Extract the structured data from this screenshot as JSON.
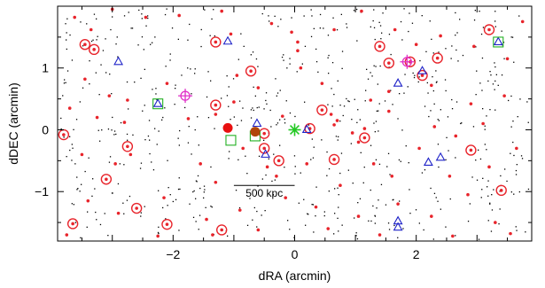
{
  "chart_data": {
    "type": "scatter",
    "title": "",
    "xlabel": "dRA (arcmin)",
    "ylabel": "dDEC (arcmin)",
    "xlim": [
      -3.9,
      3.9
    ],
    "ylim": [
      -1.8,
      2.0
    ],
    "x_ticks": [
      -2,
      0,
      2
    ],
    "x_tick_labels": [
      "−2",
      "0",
      "2"
    ],
    "y_ticks": [
      -1,
      0,
      1
    ],
    "y_tick_labels": [
      "−1",
      "0",
      "1"
    ],
    "grid": false,
    "scale_bar": {
      "label": "500 kpc",
      "x_start": -1.0,
      "x_end": 0.0,
      "y": -0.9
    },
    "background_galaxies": {
      "count": 650,
      "color": "#000000",
      "marker": "dot"
    },
    "series": [
      {
        "marker": "red-dot",
        "color": "#e8242b",
        "points": [
          [
            -3.62,
            1.82
          ],
          [
            -3.35,
            1.62
          ],
          [
            -3.0,
            1.95
          ],
          [
            -2.45,
            1.82
          ],
          [
            -1.9,
            1.85
          ],
          [
            -1.2,
            1.92
          ],
          [
            -1.05,
            1.55
          ],
          [
            -0.38,
            1.72
          ],
          [
            -0.05,
            1.58
          ],
          [
            0.05,
            1.28
          ],
          [
            0.05,
            1.42
          ],
          [
            0.65,
            1.62
          ],
          [
            1.1,
            1.92
          ],
          [
            1.65,
            1.62
          ],
          [
            2.0,
            1.38
          ],
          [
            2.4,
            1.52
          ],
          [
            2.95,
            1.35
          ],
          [
            3.5,
            1.15
          ],
          [
            3.75,
            1.75
          ],
          [
            -3.45,
            0.82
          ],
          [
            -3.05,
            0.55
          ],
          [
            -2.75,
            0.48
          ],
          [
            -2.1,
            0.75
          ],
          [
            -0.95,
            0.88
          ],
          [
            -0.6,
            0.68
          ],
          [
            0.1,
            1.0
          ],
          [
            0.45,
            0.75
          ],
          [
            1.25,
            0.48
          ],
          [
            1.55,
            0.62
          ],
          [
            2.25,
            0.72
          ],
          [
            2.9,
            0.42
          ],
          [
            3.45,
            0.55
          ],
          [
            -3.7,
            0.35
          ],
          [
            -3.25,
            0.2
          ],
          [
            -2.8,
            0.12
          ],
          [
            -1.75,
            0.18
          ],
          [
            -1.3,
            0.25
          ],
          [
            -0.2,
            0.22
          ],
          [
            0.6,
            0.25
          ],
          [
            0.7,
            0.15
          ],
          [
            0.65,
            0.08
          ],
          [
            0.95,
            -0.05
          ],
          [
            1.15,
            0.02
          ],
          [
            1.55,
            0.3
          ],
          [
            2.3,
            0.05
          ],
          [
            2.65,
            -0.1
          ],
          [
            3.1,
            0.1
          ],
          [
            -3.5,
            -0.4
          ],
          [
            -2.95,
            -0.55
          ],
          [
            -2.7,
            -0.4
          ],
          [
            -1.55,
            -0.55
          ],
          [
            -1.3,
            -0.85
          ],
          [
            -0.85,
            -0.3
          ],
          [
            -0.45,
            -0.6
          ],
          [
            -0.3,
            -0.75
          ],
          [
            0.2,
            -0.55
          ],
          [
            0.75,
            -0.9
          ],
          [
            1.3,
            -0.55
          ],
          [
            1.6,
            -0.75
          ],
          [
            2.05,
            -0.3
          ],
          [
            2.55,
            -0.75
          ],
          [
            3.2,
            -0.6
          ],
          [
            3.65,
            -0.3
          ],
          [
            -3.4,
            -1.15
          ],
          [
            -2.9,
            -1.35
          ],
          [
            -2.15,
            -1.1
          ],
          [
            -1.45,
            -1.45
          ],
          [
            -0.9,
            -1.3
          ],
          [
            -0.15,
            -1.1
          ],
          [
            0.35,
            -1.25
          ],
          [
            1.05,
            -1.4
          ],
          [
            1.7,
            -1.2
          ],
          [
            2.25,
            -1.4
          ],
          [
            2.85,
            -1.05
          ],
          [
            3.3,
            -1.5
          ],
          [
            -3.75,
            -1.7
          ],
          [
            -2.25,
            -1.72
          ],
          [
            -1.35,
            -1.7
          ],
          [
            -0.6,
            -1.62
          ],
          [
            0.55,
            -1.6
          ],
          [
            1.4,
            -1.7
          ],
          [
            2.6,
            -1.72
          ],
          [
            3.55,
            -1.68
          ],
          [
            -1.0,
            0.45
          ],
          [
            1.05,
            -0.2
          ]
        ]
      },
      {
        "marker": "circled-dot",
        "color": "#e8242b",
        "points": [
          [
            -3.45,
            1.38
          ],
          [
            -3.3,
            1.3
          ],
          [
            -2.75,
            -0.27
          ],
          [
            -3.8,
            -0.08
          ],
          [
            -3.1,
            -0.8
          ],
          [
            -2.6,
            -1.27
          ],
          [
            -3.65,
            -1.52
          ],
          [
            -2.1,
            -1.53
          ],
          [
            -1.3,
            1.42
          ],
          [
            -1.3,
            0.4
          ],
          [
            -1.2,
            -1.62
          ],
          [
            -0.72,
            0.95
          ],
          [
            -0.5,
            -0.06
          ],
          [
            -0.5,
            -0.3
          ],
          [
            -0.26,
            -0.5
          ],
          [
            0.25,
            0.02
          ],
          [
            0.45,
            0.32
          ],
          [
            0.65,
            -0.48
          ],
          [
            1.15,
            -0.13
          ],
          [
            1.4,
            1.35
          ],
          [
            1.55,
            1.08
          ],
          [
            1.9,
            1.1
          ],
          [
            2.1,
            0.88
          ],
          [
            2.35,
            1.16
          ],
          [
            2.9,
            -0.33
          ],
          [
            3.2,
            1.62
          ],
          [
            3.4,
            -0.98
          ]
        ]
      },
      {
        "marker": "open-triangle",
        "color": "#1e22c8",
        "points": [
          [
            -1.1,
            1.43
          ],
          [
            -2.9,
            1.1
          ],
          [
            -2.25,
            0.42
          ],
          [
            -0.62,
            0.1
          ],
          [
            -0.48,
            -0.4
          ],
          [
            0.2,
            0.0
          ],
          [
            1.7,
            0.75
          ],
          [
            2.1,
            0.95
          ],
          [
            2.2,
            -0.53
          ],
          [
            2.4,
            -0.45
          ],
          [
            1.7,
            -1.48
          ],
          [
            1.7,
            -1.58
          ],
          [
            3.35,
            1.42
          ]
        ]
      },
      {
        "marker": "open-square",
        "color": "#22b022",
        "points": [
          [
            -2.25,
            0.42
          ],
          [
            -1.05,
            -0.17
          ],
          [
            -0.65,
            -0.1
          ],
          [
            3.35,
            1.42
          ]
        ]
      },
      {
        "marker": "magenta-circle-cross",
        "color": "#e030c8",
        "points": [
          [
            -1.8,
            0.55
          ],
          [
            1.85,
            1.1
          ]
        ]
      },
      {
        "marker": "filled-large",
        "color": "#e81010",
        "points": [
          [
            -1.1,
            0.03
          ]
        ]
      },
      {
        "marker": "filled-large-brown",
        "color": "#b0440a",
        "points": [
          [
            -0.65,
            -0.03
          ]
        ]
      },
      {
        "marker": "green-asterisk",
        "color": "#22c822",
        "points": [
          [
            0.0,
            0.0
          ]
        ]
      }
    ]
  }
}
